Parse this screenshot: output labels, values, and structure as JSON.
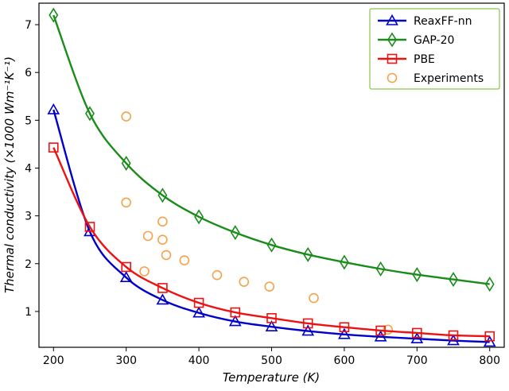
{
  "chart_data": {
    "type": "line",
    "title": "",
    "xlabel": "Temperature (K)",
    "ylabel": "Thermal conductivity (×1000 Wm⁻¹K⁻¹)",
    "xlim": [
      180,
      820
    ],
    "ylim": [
      0.25,
      7.45
    ],
    "xticks": [
      200,
      300,
      400,
      500,
      600,
      700,
      800
    ],
    "yticks": [
      1,
      2,
      3,
      4,
      5,
      6,
      7
    ],
    "grid": false,
    "legend_position": "top-right",
    "series": [
      {
        "name": "ReaxFF-nn",
        "color": "#0000cc",
        "marker": "triangle",
        "line": true,
        "x": [
          200,
          250,
          300,
          350,
          400,
          450,
          500,
          550,
          600,
          650,
          700,
          750,
          800
        ],
        "values": [
          5.22,
          2.67,
          1.71,
          1.24,
          0.97,
          0.79,
          0.68,
          0.59,
          0.52,
          0.47,
          0.43,
          0.39,
          0.36
        ]
      },
      {
        "name": "GAP-20",
        "color": "#1a8c1a",
        "marker": "diamond",
        "line": true,
        "x": [
          200,
          250,
          300,
          350,
          400,
          450,
          500,
          550,
          600,
          650,
          700,
          750,
          800
        ],
        "values": [
          7.2,
          5.14,
          4.1,
          3.43,
          2.98,
          2.65,
          2.39,
          2.19,
          2.03,
          1.89,
          1.77,
          1.67,
          1.57
        ]
      },
      {
        "name": "PBE",
        "color": "#ee1111",
        "marker": "square",
        "line": true,
        "x": [
          200,
          250,
          300,
          350,
          400,
          450,
          500,
          550,
          600,
          650,
          700,
          750,
          800
        ],
        "values": [
          4.43,
          2.77,
          1.93,
          1.49,
          1.18,
          0.98,
          0.86,
          0.75,
          0.67,
          0.6,
          0.55,
          0.5,
          0.48
        ]
      },
      {
        "name": "Experiments",
        "color": "#f5a34a",
        "marker": "circle",
        "line": false,
        "x": [
          300,
          300,
          325,
          330,
          350,
          350,
          355,
          380,
          425,
          462,
          497,
          558,
          660
        ],
        "values": [
          5.08,
          3.28,
          1.84,
          2.58,
          2.88,
          2.5,
          2.18,
          2.07,
          1.76,
          1.62,
          1.52,
          1.28,
          0.62
        ]
      }
    ]
  }
}
